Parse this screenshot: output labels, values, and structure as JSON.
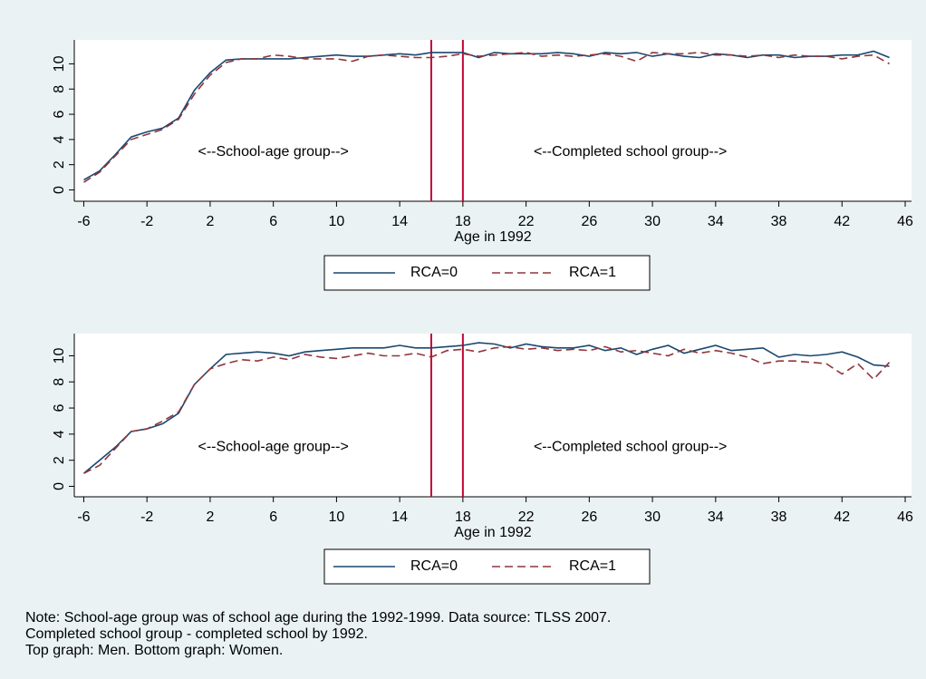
{
  "chart_data": [
    {
      "type": "line",
      "xlabel": "Age in 1992",
      "x": [
        -6,
        -5,
        -4,
        -3,
        -2,
        -1,
        0,
        1,
        2,
        3,
        4,
        5,
        6,
        7,
        8,
        9,
        10,
        11,
        12,
        13,
        14,
        15,
        16,
        17,
        18,
        19,
        20,
        21,
        22,
        23,
        24,
        25,
        26,
        27,
        28,
        29,
        30,
        31,
        32,
        33,
        34,
        35,
        36,
        37,
        38,
        39,
        40,
        41,
        42,
        43,
        44,
        45
      ],
      "series": [
        {
          "name": "RCA=0",
          "color": "#1a476f",
          "dash": false,
          "values": [
            0.8,
            1.5,
            2.8,
            4.2,
            4.6,
            4.9,
            5.7,
            7.9,
            9.3,
            10.3,
            10.4,
            10.4,
            10.4,
            10.4,
            10.5,
            10.6,
            10.7,
            10.6,
            10.6,
            10.7,
            10.8,
            10.7,
            10.9,
            10.9,
            10.9,
            10.5,
            10.9,
            10.8,
            10.8,
            10.8,
            10.9,
            10.8,
            10.6,
            10.9,
            10.8,
            10.9,
            10.6,
            10.8,
            10.6,
            10.5,
            10.8,
            10.7,
            10.5,
            10.7,
            10.7,
            10.5,
            10.6,
            10.6,
            10.7,
            10.7,
            11.0,
            10.5
          ]
        },
        {
          "name": "RCA=1",
          "color": "#90353b",
          "dash": true,
          "values": [
            0.6,
            1.4,
            2.7,
            4.0,
            4.4,
            4.8,
            5.6,
            7.6,
            9.1,
            10.1,
            10.4,
            10.4,
            10.7,
            10.6,
            10.4,
            10.4,
            10.4,
            10.2,
            10.6,
            10.7,
            10.6,
            10.5,
            10.5,
            10.6,
            10.8,
            10.6,
            10.7,
            10.8,
            10.9,
            10.6,
            10.7,
            10.6,
            10.7,
            10.8,
            10.6,
            10.2,
            10.9,
            10.8,
            10.8,
            10.9,
            10.7,
            10.7,
            10.6,
            10.7,
            10.5,
            10.7,
            10.6,
            10.6,
            10.4,
            10.6,
            10.7,
            10.0
          ]
        }
      ],
      "xlim": [
        -6.6,
        46.4
      ],
      "xticks": [
        -6,
        -2,
        2,
        6,
        10,
        14,
        18,
        22,
        26,
        30,
        34,
        38,
        42,
        46
      ],
      "ylim": [
        -0.9,
        11.9
      ],
      "yticks": [
        0,
        2,
        4,
        6,
        8,
        10
      ],
      "vlines": [
        16,
        18
      ],
      "vline_color": "#c10534",
      "annotations": [
        {
          "text": "<--School-age group-->",
          "x": 6,
          "y": 3
        },
        {
          "text": "<--Completed school group-->",
          "x": 28.6,
          "y": 3
        }
      ]
    },
    {
      "type": "line",
      "xlabel": "Age in 1992",
      "x": [
        -6,
        -5,
        -4,
        -3,
        -2,
        -1,
        0,
        1,
        2,
        3,
        4,
        5,
        6,
        7,
        8,
        9,
        10,
        11,
        12,
        13,
        14,
        15,
        16,
        17,
        18,
        19,
        20,
        21,
        22,
        23,
        24,
        25,
        26,
        27,
        28,
        29,
        30,
        31,
        32,
        33,
        34,
        35,
        36,
        37,
        38,
        39,
        40,
        41,
        42,
        43,
        44,
        45
      ],
      "series": [
        {
          "name": "RCA=0",
          "color": "#1a476f",
          "dash": false,
          "values": [
            1.0,
            2.0,
            3.0,
            4.2,
            4.4,
            4.8,
            5.6,
            7.8,
            9.0,
            10.1,
            10.2,
            10.3,
            10.2,
            10.0,
            10.3,
            10.4,
            10.5,
            10.6,
            10.6,
            10.6,
            10.8,
            10.6,
            10.6,
            10.7,
            10.8,
            11.0,
            10.9,
            10.6,
            10.9,
            10.7,
            10.6,
            10.6,
            10.8,
            10.4,
            10.6,
            10.1,
            10.5,
            10.8,
            10.2,
            10.5,
            10.8,
            10.4,
            10.5,
            10.6,
            9.9,
            10.1,
            10.0,
            10.1,
            10.3,
            9.9,
            9.3,
            9.2
          ]
        },
        {
          "name": "RCA=1",
          "color": "#90353b",
          "dash": true,
          "values": [
            1.0,
            1.6,
            2.9,
            4.2,
            4.4,
            5.0,
            5.7,
            7.8,
            9.0,
            9.4,
            9.7,
            9.6,
            9.9,
            9.7,
            10.1,
            9.9,
            9.8,
            10.0,
            10.2,
            10.0,
            10.0,
            10.2,
            9.9,
            10.4,
            10.5,
            10.3,
            10.6,
            10.7,
            10.5,
            10.6,
            10.4,
            10.5,
            10.4,
            10.7,
            10.3,
            10.4,
            10.2,
            10.0,
            10.5,
            10.2,
            10.4,
            10.2,
            9.9,
            9.4,
            9.6,
            9.6,
            9.5,
            9.4,
            8.6,
            9.4,
            8.2,
            9.5
          ]
        }
      ],
      "xlim": [
        -6.6,
        46.4
      ],
      "xticks": [
        -6,
        -2,
        2,
        6,
        10,
        14,
        18,
        22,
        26,
        30,
        34,
        38,
        42,
        46
      ],
      "ylim": [
        -0.8,
        11.7
      ],
      "yticks": [
        0,
        2,
        4,
        6,
        8,
        10
      ],
      "vlines": [
        16,
        18
      ],
      "vline_color": "#c10534",
      "annotations": [
        {
          "text": "<--School-age group-->",
          "x": 6,
          "y": 3
        },
        {
          "text": "<--Completed school group-->",
          "x": 28.6,
          "y": 3
        }
      ]
    }
  ],
  "note": [
    "Note: School-age group was of school age during the 1992-1999. Data source: TLSS 2007.",
    "Completed school group - completed school by 1992.",
    "Top graph: Men. Bottom graph: Women."
  ]
}
